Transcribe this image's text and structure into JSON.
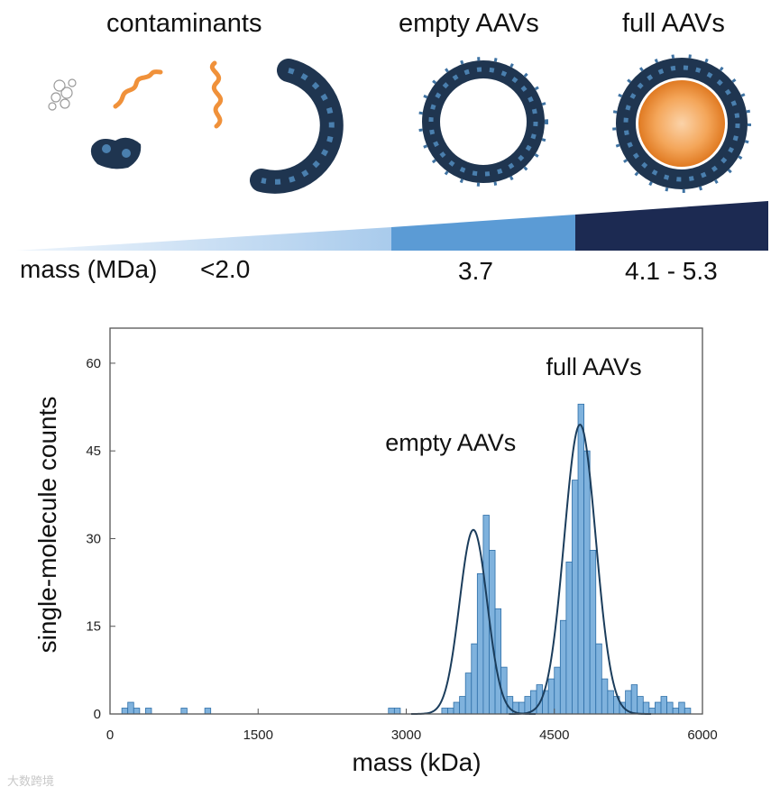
{
  "illustration": {
    "titles": {
      "contaminants": "contaminants",
      "empty": "empty AAVs",
      "full": "full AAVs"
    },
    "mass_label": "mass (MDa)",
    "mass_values": [
      "<2.0",
      "3.7",
      "4.1 - 5.3"
    ],
    "gradient_colors": [
      "#e6f0fa",
      "#a9cbec",
      "#5b9bd5",
      "#1c2a52"
    ]
  },
  "colors": {
    "bar_fill": "#7fb2dd",
    "bar_stroke": "#2e6fa8",
    "fit_line": "#1b3d5c",
    "axis": "#555555",
    "capsid_dark": "#1f3550",
    "capsid_light": "#4a7fae",
    "genome_orange": "#f0913a"
  },
  "chart_data": {
    "type": "bar",
    "title": "",
    "xlabel": "mass (kDa)",
    "ylabel": "single-molecule counts",
    "xlim": [
      0,
      6000
    ],
    "ylim": [
      0,
      66
    ],
    "xticks": [
      0,
      1500,
      3000,
      4500,
      6000
    ],
    "yticks": [
      0,
      15,
      30,
      45,
      60
    ],
    "bin_width": 60,
    "histogram_counts": [
      0,
      0,
      1,
      2,
      1,
      0,
      1,
      0,
      0,
      0,
      0,
      0,
      1,
      0,
      0,
      0,
      1,
      0,
      0,
      0,
      0,
      0,
      0,
      0,
      0,
      0,
      0,
      0,
      0,
      0,
      0,
      0,
      0,
      0,
      0,
      0,
      0,
      0,
      0,
      0,
      0,
      0,
      0,
      0,
      0,
      0,
      0,
      1,
      1,
      0,
      0,
      0,
      0,
      0,
      0,
      0,
      1,
      1,
      2,
      3,
      7,
      12,
      24,
      34,
      28,
      18,
      8,
      3,
      2,
      2,
      3,
      4,
      5,
      4,
      6,
      8,
      16,
      26,
      40,
      53,
      45,
      28,
      12,
      6,
      4,
      3,
      2,
      4,
      5,
      3,
      2,
      1,
      2,
      3,
      2,
      1,
      2,
      1,
      0,
      0
    ],
    "fits": [
      {
        "name": "empty AAVs",
        "center": 3680,
        "amplitude": 31.5,
        "sigma": 140
      },
      {
        "name": "full AAVs",
        "center": 4760,
        "amplitude": 49.5,
        "sigma": 160
      }
    ],
    "annotations": [
      {
        "text": "empty AAVs",
        "x": 3450,
        "y": 45
      },
      {
        "text": "full AAVs",
        "x": 4900,
        "y": 58
      }
    ]
  },
  "watermark": "大数跨境"
}
